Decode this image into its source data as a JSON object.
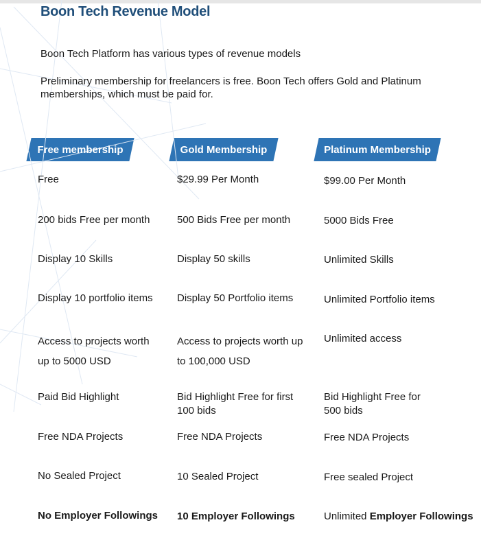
{
  "title": "Boon Tech Revenue Model",
  "intro": "Boon Tech Platform has various types of revenue models",
  "description": "Preliminary membership for freelancers is free. Boon Tech offers Gold and Platinum memberships, which must be paid for.",
  "accent_color": "#2e74b5",
  "title_color": "#1f4e79",
  "plans": [
    "Free membership",
    "Gold Membership",
    "Platinum Membership"
  ],
  "rows": [
    [
      {
        "text": "Free"
      },
      {
        "text": "$29.99 Per Month"
      },
      {
        "text": "$99.00 Per Month"
      }
    ],
    [
      {
        "text": "200 bids Free per month"
      },
      {
        "text": "500 Bids Free per month"
      },
      {
        "text": "5000 Bids Free"
      }
    ],
    [
      {
        "text": "Display 10 Skills"
      },
      {
        "text": "Display 50 skills"
      },
      {
        "text": "Unlimited Skills"
      }
    ],
    [
      {
        "text": "Display 10 portfolio items"
      },
      {
        "text": "Display 50 Portfolio items"
      },
      {
        "text": "Unlimited Portfolio items"
      }
    ],
    [
      {
        "text": "Access to projects worth",
        "text2": "up to 5000 USD"
      },
      {
        "text": "Access to projects worth up",
        "text2": "to 100,000 USD"
      },
      {
        "text": "Unlimited access"
      }
    ],
    [
      {
        "text": "Paid Bid Highlight"
      },
      {
        "text": "Bid Highlight Free for first",
        "text2": "100 bids"
      },
      {
        "text": "Bid Highlight Free for",
        "text2": "500 bids"
      }
    ],
    [
      {
        "text": "Free NDA Projects"
      },
      {
        "text": "Free NDA Projects"
      },
      {
        "text": "Free NDA Projects"
      }
    ],
    [
      {
        "text": "No Sealed Project"
      },
      {
        "text": "10 Sealed Project"
      },
      {
        "text": "Free sealed Project"
      }
    ],
    [
      {
        "bold": "No Employer Followings"
      },
      {
        "bold": "10 Employer Followings"
      },
      {
        "text": "Unlimited ",
        "bold": "Employer Followings"
      }
    ]
  ]
}
